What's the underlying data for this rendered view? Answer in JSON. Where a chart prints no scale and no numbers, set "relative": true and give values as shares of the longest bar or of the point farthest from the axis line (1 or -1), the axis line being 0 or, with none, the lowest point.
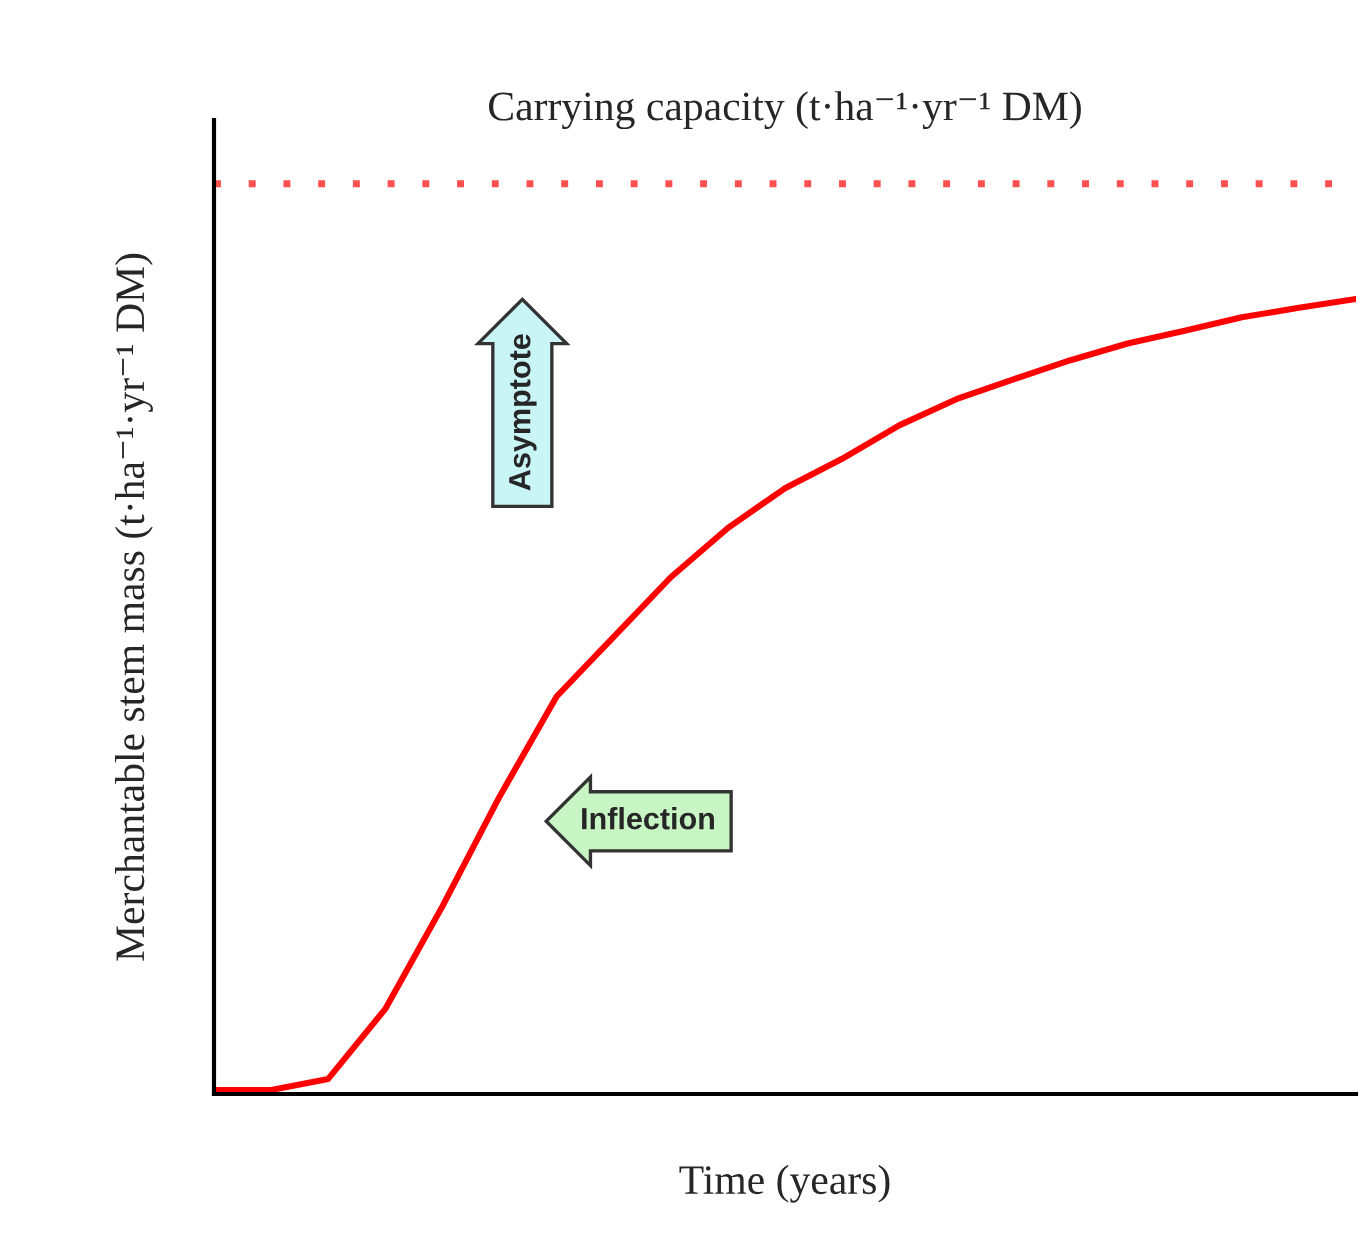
{
  "chart_data": {
    "type": "line",
    "relative": true,
    "xlabel": "Time (years)",
    "ylabel": "Merchantable stem mass (t·ha⁻¹·yr⁻¹ DM)",
    "categories": [
      null,
      null,
      null,
      null,
      null,
      null,
      null,
      null,
      null,
      null,
      null,
      null,
      null,
      null,
      null,
      null,
      null,
      null,
      null,
      null,
      null
    ],
    "series": [
      {
        "color": "#ff0000",
        "values": [
          0.005,
          0.005,
          0.019,
          0.107,
          0.236,
          0.374,
          0.5,
          0.575,
          0.65,
          0.712,
          0.762,
          0.799,
          0.841,
          0.874,
          0.899,
          0.923,
          0.944,
          0.96,
          0.977,
          0.989,
          1
        ]
      }
    ],
    "ref_lines": [
      {
        "axis": "y",
        "value": 1.145,
        "label": "Carrying capacity (t·ha⁻¹·yr⁻¹ DM)",
        "color": "#ff5050",
        "line_style": "dotted"
      }
    ],
    "annotations": [
      "Asymptote",
      "Inflection"
    ],
    "grid": false,
    "legend": false,
    "marker": "none",
    "line_style": "solid"
  }
}
